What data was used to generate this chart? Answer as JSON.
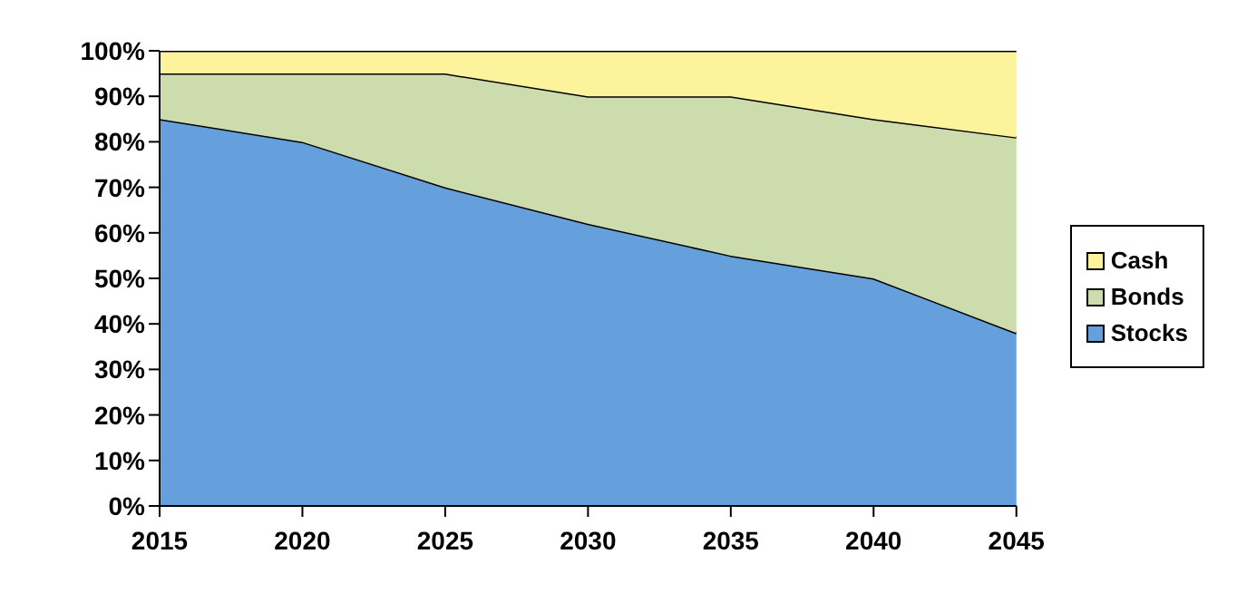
{
  "chart_data": {
    "type": "area",
    "stacked": true,
    "categories": [
      "2015",
      "2020",
      "2025",
      "2030",
      "2035",
      "2040",
      "2045"
    ],
    "series": [
      {
        "name": "Stocks",
        "color": "#659fdc",
        "values": [
          85,
          80,
          70,
          62,
          55,
          50,
          38
        ]
      },
      {
        "name": "Bonds",
        "color": "#cddcad",
        "values": [
          10,
          15,
          25,
          28,
          35,
          35,
          43
        ]
      },
      {
        "name": "Cash",
        "color": "#fdf39c",
        "values": [
          5,
          5,
          5,
          10,
          10,
          15,
          19
        ]
      }
    ],
    "ylim": [
      0,
      100
    ],
    "yticks": [
      {
        "value": 0,
        "label": "0%"
      },
      {
        "value": 10,
        "label": "10%"
      },
      {
        "value": 20,
        "label": "20%"
      },
      {
        "value": 30,
        "label": "30%"
      },
      {
        "value": 40,
        "label": "40%"
      },
      {
        "value": 50,
        "label": "50%"
      },
      {
        "value": 60,
        "label": "60%"
      },
      {
        "value": 70,
        "label": "70%"
      },
      {
        "value": 80,
        "label": "80%"
      },
      {
        "value": 90,
        "label": "90%"
      },
      {
        "value": 100,
        "label": "100%"
      }
    ],
    "grid": false,
    "legend": "right"
  }
}
